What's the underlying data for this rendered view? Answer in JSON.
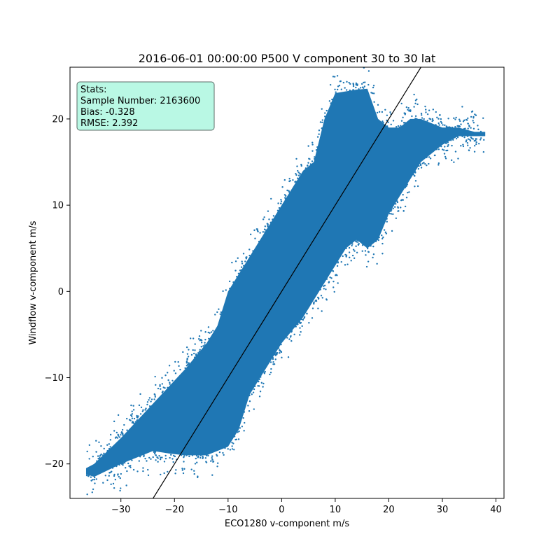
{
  "chart_data": {
    "type": "scatter",
    "title": "2016-06-01 00:00:00 P500 V component 30 to 30 lat",
    "xlabel": "ECO1280 v-component m/s",
    "ylabel": "Windflow v-component m/s",
    "xlim": [
      -39.5,
      41.5
    ],
    "ylim": [
      -24,
      26
    ],
    "xticks": [
      -30,
      -20,
      -10,
      0,
      10,
      20,
      30,
      40
    ],
    "yticks": [
      -20,
      -10,
      0,
      10,
      20
    ],
    "xtick_labels": [
      "−30",
      "−20",
      "−10",
      "0",
      "10",
      "20",
      "30",
      "40"
    ],
    "ytick_labels": [
      "−20",
      "−10",
      "0",
      "10",
      "20"
    ],
    "series": [
      {
        "color": "#1f77b4",
        "point_cloud_envelope": {
          "note_x": [
            -36.5,
            -35,
            -30,
            -24,
            -21,
            -18,
            -14,
            -12,
            -10,
            -8,
            -6,
            -4,
            -2,
            0,
            2,
            4,
            6,
            8,
            10,
            12,
            14,
            16,
            18,
            20,
            22,
            24,
            26,
            28,
            30,
            33,
            36,
            38
          ],
          "y_low": [
            -21.2,
            -21.5,
            -20,
            -18.5,
            -18.8,
            -19,
            -19,
            -18.5,
            -18,
            -16,
            -12,
            -10,
            -8,
            -6,
            -4.5,
            -3,
            -1,
            1,
            3,
            5,
            6,
            5,
            6,
            9,
            11,
            13,
            15,
            16,
            17,
            18,
            18,
            18
          ],
          "y_high": [
            -20.5,
            -20,
            -17,
            -13,
            -11,
            -9,
            -6,
            -4,
            0,
            2,
            4,
            6,
            8,
            10,
            12,
            14,
            15,
            20,
            23,
            23.2,
            23.4,
            23.5,
            20,
            19,
            19,
            20,
            20,
            19.5,
            19,
            19,
            18.5,
            18.5
          ]
        }
      },
      {
        "type": "line",
        "color": "#000000",
        "x": [
          -24,
          26
        ],
        "y": [
          -24,
          26
        ]
      }
    ],
    "stats_box": {
      "lines": [
        "Stats:",
        "Sample Number: 2163600",
        "Bias: -0.328",
        "RMSE: 2.392"
      ],
      "background": "#b9f8e4",
      "border": "#5a6b66"
    }
  }
}
